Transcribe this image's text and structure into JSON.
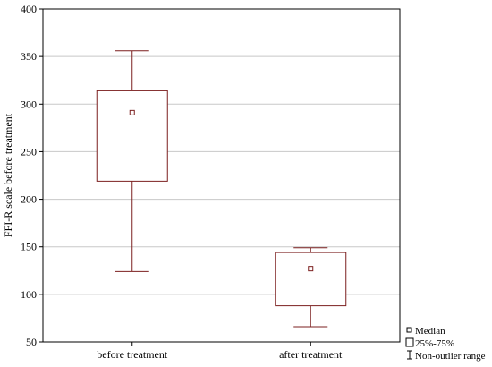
{
  "chart_data": {
    "type": "box",
    "title": "",
    "xlabel": "",
    "ylabel": "FFI-R scale before treatment",
    "ylim": [
      50,
      400
    ],
    "yticks": [
      50,
      100,
      150,
      200,
      250,
      300,
      350,
      400
    ],
    "grid": true,
    "legend_position": "bottom-right",
    "colors": {
      "box": "#7b1f1f",
      "grid": "#c8c8c8",
      "axis": "#000000"
    },
    "categories": [
      "before treatment",
      "after treatment"
    ],
    "boxes": [
      {
        "category": "before treatment",
        "median": 291,
        "q1": 219,
        "q3": 314,
        "min": 124,
        "max": 356
      },
      {
        "category": "after treatment",
        "median": 127,
        "q1": 88,
        "q3": 144,
        "min": 66,
        "max": 149
      }
    ],
    "legend": [
      {
        "symbol": "median",
        "label": "Median"
      },
      {
        "symbol": "box",
        "label": "25%-75%"
      },
      {
        "symbol": "whisker",
        "label": "Non-outlier range"
      }
    ]
  }
}
